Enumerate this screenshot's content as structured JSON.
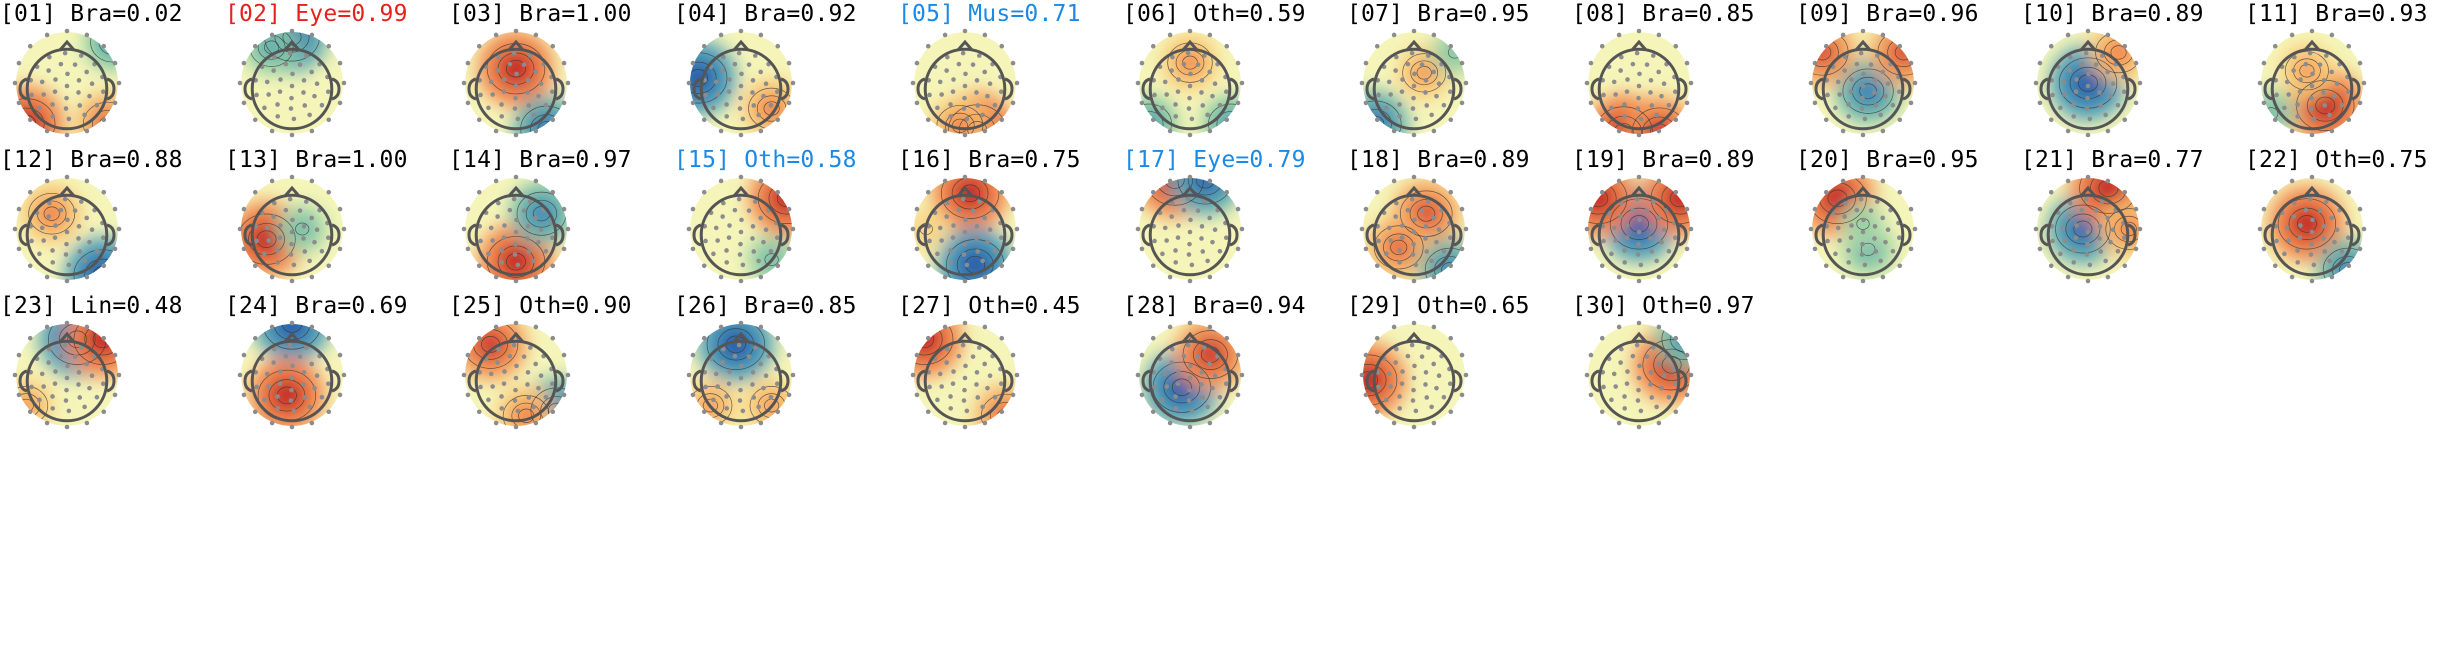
{
  "title": "",
  "palette": {
    "text": "#000000",
    "red_highlight": "#e8201c",
    "blue_highlight": "#1a8ae6",
    "sensor": "#8c8c8c",
    "outline": "#555555"
  },
  "components": [
    {
      "label": "[01] Bra=0.02",
      "color": "black",
      "maps": [
        {
          "fx": 0.1,
          "fy": 0.9,
          "v": 1
        },
        {
          "fx": 0.95,
          "fy": 0.1,
          "v": -0.55
        },
        {
          "fx": 0.9,
          "fy": 0.9,
          "v": 0.7
        }
      ]
    },
    {
      "label": "[02] Eye=0.99",
      "color": "red",
      "maps": [
        {
          "fx": 0.5,
          "fy": 0.05,
          "v": -0.9
        },
        {
          "fx": 0.3,
          "fy": 0.15,
          "v": -0.5
        }
      ]
    },
    {
      "label": "[03] Bra=1.00",
      "color": "black",
      "maps": [
        {
          "fx": 0.5,
          "fy": 0.36,
          "v": 1
        },
        {
          "fx": 0.8,
          "fy": 0.95,
          "v": -0.8
        }
      ]
    },
    {
      "label": "[04] Bra=0.92",
      "color": "black",
      "maps": [
        {
          "fx": 0.08,
          "fy": 0.45,
          "v": -1
        },
        {
          "fx": 0.8,
          "fy": 0.75,
          "v": 0.6
        }
      ]
    },
    {
      "label": "[05] Mus=0.71",
      "color": "blue",
      "maps": [
        {
          "fx": 0.62,
          "fy": 0.96,
          "v": 1
        },
        {
          "fx": 0.45,
          "fy": 0.92,
          "v": 0.6
        }
      ]
    },
    {
      "label": "[06] Oth=0.59",
      "color": "black",
      "maps": [
        {
          "fx": 0.5,
          "fy": 0.3,
          "v": 0.55
        },
        {
          "fx": 0.1,
          "fy": 0.9,
          "v": -0.55
        },
        {
          "fx": 0.9,
          "fy": 0.9,
          "v": -0.55
        }
      ]
    },
    {
      "label": "[07] Bra=0.95",
      "color": "black",
      "maps": [
        {
          "fx": 0.6,
          "fy": 0.4,
          "v": 0.5
        },
        {
          "fx": 0.12,
          "fy": 0.9,
          "v": -0.8
        },
        {
          "fx": 0.9,
          "fy": 0.2,
          "v": -0.35
        }
      ]
    },
    {
      "label": "[08] Bra=0.85",
      "color": "black",
      "maps": [
        {
          "fx": 0.35,
          "fy": 0.98,
          "v": 1
        },
        {
          "fx": 0.7,
          "fy": 0.98,
          "v": 0.9
        }
      ]
    },
    {
      "label": "[09] Bra=0.96",
      "color": "black",
      "maps": [
        {
          "fx": 0.55,
          "fy": 0.58,
          "v": -0.75
        },
        {
          "fx": 0.1,
          "fy": 0.2,
          "v": 0.8
        },
        {
          "fx": 0.9,
          "fy": 0.2,
          "v": 0.8
        }
      ]
    },
    {
      "label": "[10] Bra=0.89",
      "color": "black",
      "maps": [
        {
          "fx": 0.5,
          "fy": 0.5,
          "v": -1
        },
        {
          "fx": 0.8,
          "fy": 0.2,
          "v": 0.6
        }
      ]
    },
    {
      "label": "[11] Bra=0.93",
      "color": "black",
      "maps": [
        {
          "fx": 0.63,
          "fy": 0.72,
          "v": 1
        },
        {
          "fx": 0.45,
          "fy": 0.38,
          "v": 0.5
        },
        {
          "fx": 0.1,
          "fy": 0.8,
          "v": -0.4
        }
      ]
    },
    {
      "label": "[12] Bra=0.88",
      "color": "black",
      "maps": [
        {
          "fx": 0.35,
          "fy": 0.35,
          "v": 0.6
        },
        {
          "fx": 0.85,
          "fy": 0.95,
          "v": -1
        }
      ]
    },
    {
      "label": "[13] Bra=1.00",
      "color": "black",
      "maps": [
        {
          "fx": 0.25,
          "fy": 0.6,
          "v": 1
        },
        {
          "fx": 0.6,
          "fy": 0.5,
          "v": -0.4
        }
      ]
    },
    {
      "label": "[14] Bra=0.97",
      "color": "black",
      "maps": [
        {
          "fx": 0.5,
          "fy": 0.82,
          "v": 1
        },
        {
          "fx": 0.75,
          "fy": 0.35,
          "v": -0.7
        }
      ]
    },
    {
      "label": "[15] Oth=0.58",
      "color": "blue",
      "maps": [
        {
          "fx": 0.95,
          "fy": 0.2,
          "v": 1
        },
        {
          "fx": 0.8,
          "fy": 0.8,
          "v": -0.4
        }
      ]
    },
    {
      "label": "[16] Bra=0.75",
      "color": "black",
      "maps": [
        {
          "fx": 0.55,
          "fy": 0.15,
          "v": 1
        },
        {
          "fx": 0.6,
          "fy": 0.85,
          "v": -1
        },
        {
          "fx": 0.12,
          "fy": 0.5,
          "v": 0.3
        }
      ]
    },
    {
      "label": "[17] Eye=0.79",
      "color": "blue",
      "maps": [
        {
          "fx": 0.35,
          "fy": 0.02,
          "v": 1
        },
        {
          "fx": 0.65,
          "fy": 0.02,
          "v": -0.9
        }
      ]
    },
    {
      "label": "[18] Bra=0.89",
      "color": "black",
      "maps": [
        {
          "fx": 0.62,
          "fy": 0.35,
          "v": 0.8
        },
        {
          "fx": 0.35,
          "fy": 0.68,
          "v": 0.7
        },
        {
          "fx": 0.85,
          "fy": 0.9,
          "v": -0.7
        }
      ]
    },
    {
      "label": "[19] Bra=0.89",
      "color": "black",
      "maps": [
        {
          "fx": 0.5,
          "fy": 0.45,
          "v": -1
        },
        {
          "fx": 0.1,
          "fy": 0.2,
          "v": 1
        },
        {
          "fx": 0.9,
          "fy": 0.2,
          "v": 1
        }
      ]
    },
    {
      "label": "[20] Bra=0.95",
      "color": "black",
      "maps": [
        {
          "fx": 0.25,
          "fy": 0.2,
          "v": 1
        },
        {
          "fx": 0.55,
          "fy": 0.7,
          "v": -0.45
        },
        {
          "fx": 0.5,
          "fy": 0.45,
          "v": -0.3
        }
      ]
    },
    {
      "label": "[21] Bra=0.77",
      "color": "black",
      "maps": [
        {
          "fx": 0.45,
          "fy": 0.5,
          "v": -0.9
        },
        {
          "fx": 0.7,
          "fy": 0.1,
          "v": 1
        },
        {
          "fx": 0.9,
          "fy": 0.5,
          "v": 0.6
        }
      ]
    },
    {
      "label": "[22] Oth=0.75",
      "color": "black",
      "maps": [
        {
          "fx": 0.45,
          "fy": 0.45,
          "v": 1
        },
        {
          "fx": 0.85,
          "fy": 0.9,
          "v": -0.7
        }
      ]
    },
    {
      "label": "[23] Lin=0.48",
      "color": "black",
      "maps": [
        {
          "fx": 0.6,
          "fy": 0.15,
          "v": -1
        },
        {
          "fx": 0.85,
          "fy": 0.15,
          "v": 1
        },
        {
          "fx": 0.1,
          "fy": 0.8,
          "v": 0.5
        }
      ]
    },
    {
      "label": "[24] Bra=0.69",
      "color": "black",
      "maps": [
        {
          "fx": 0.5,
          "fy": 0.0,
          "v": -1
        },
        {
          "fx": 0.45,
          "fy": 0.7,
          "v": 1
        }
      ]
    },
    {
      "label": "[25] Oth=0.90",
      "color": "black",
      "maps": [
        {
          "fx": 0.25,
          "fy": 0.2,
          "v": 0.9
        },
        {
          "fx": 0.9,
          "fy": 0.85,
          "v": -0.8
        },
        {
          "fx": 0.6,
          "fy": 0.9,
          "v": 0.6
        }
      ]
    },
    {
      "label": "[26] Bra=0.85",
      "color": "black",
      "maps": [
        {
          "fx": 0.45,
          "fy": 0.2,
          "v": -1
        },
        {
          "fx": 0.8,
          "fy": 0.8,
          "v": 0.5
        },
        {
          "fx": 0.2,
          "fy": 0.8,
          "v": 0.5
        }
      ]
    },
    {
      "label": "[27] Oth=0.45",
      "color": "black",
      "maps": [
        {
          "fx": 0.1,
          "fy": 0.15,
          "v": 1
        },
        {
          "fx": 0.9,
          "fy": 0.9,
          "v": 0.7
        }
      ]
    },
    {
      "label": "[28] Bra=0.94",
      "color": "black",
      "maps": [
        {
          "fx": 0.42,
          "fy": 0.62,
          "v": -1
        },
        {
          "fx": 0.7,
          "fy": 0.3,
          "v": 0.9
        }
      ]
    },
    {
      "label": "[29] Oth=0.65",
      "color": "black",
      "maps": [
        {
          "fx": 0.05,
          "fy": 0.55,
          "v": 1
        }
      ]
    },
    {
      "label": "[30] Oth=0.97",
      "color": "black",
      "maps": [
        {
          "fx": 0.82,
          "fy": 0.4,
          "v": 1
        },
        {
          "fx": 0.95,
          "fy": 0.15,
          "v": -0.6
        }
      ]
    }
  ]
}
